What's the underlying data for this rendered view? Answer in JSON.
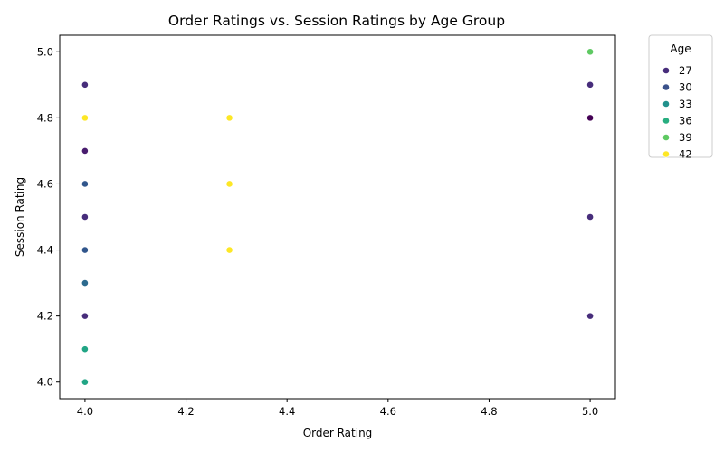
{
  "chart_data": {
    "type": "scatter",
    "title": "Order Ratings vs. Session Ratings by Age Group",
    "xlabel": "Order Rating",
    "ylabel": "Session Rating",
    "xlim": [
      3.95,
      5.05
    ],
    "ylim": [
      3.95,
      5.05
    ],
    "xticks": [
      "4.0",
      "4.2",
      "4.4",
      "4.6",
      "4.8",
      "5.0"
    ],
    "yticks": [
      "4.0",
      "4.2",
      "4.4",
      "4.6",
      "4.8",
      "5.0"
    ],
    "grid": false,
    "legend": {
      "title": "Age",
      "placement": "outside-right",
      "entries": [
        {
          "label": "27",
          "color": "#472d7b"
        },
        {
          "label": "30",
          "color": "#3b528b"
        },
        {
          "label": "33",
          "color": "#21918c"
        },
        {
          "label": "36",
          "color": "#28ae80"
        },
        {
          "label": "39",
          "color": "#5ec962"
        },
        {
          "label": "42",
          "color": "#fde725"
        }
      ]
    },
    "points": [
      {
        "x": 4.0,
        "y": 4.9,
        "age": 27,
        "color": "#472d7b"
      },
      {
        "x": 4.0,
        "y": 4.8,
        "age": 42,
        "color": "#fde725"
      },
      {
        "x": 4.0,
        "y": 4.7,
        "age": 26,
        "color": "#481c6e"
      },
      {
        "x": 4.0,
        "y": 4.6,
        "age": 30,
        "color": "#31568c"
      },
      {
        "x": 4.0,
        "y": 4.5,
        "age": 27,
        "color": "#472d7b"
      },
      {
        "x": 4.0,
        "y": 4.4,
        "age": 30,
        "color": "#31568c"
      },
      {
        "x": 4.0,
        "y": 4.3,
        "age": 31,
        "color": "#2c6a8e"
      },
      {
        "x": 4.0,
        "y": 4.2,
        "age": 27,
        "color": "#472d7b"
      },
      {
        "x": 4.0,
        "y": 4.1,
        "age": 35,
        "color": "#21a585"
      },
      {
        "x": 4.0,
        "y": 4.0,
        "age": 35,
        "color": "#21a585"
      },
      {
        "x": 4.286,
        "y": 4.8,
        "age": 42,
        "color": "#fde725"
      },
      {
        "x": 4.286,
        "y": 4.6,
        "age": 42,
        "color": "#fde725"
      },
      {
        "x": 4.286,
        "y": 4.4,
        "age": 42,
        "color": "#fde725"
      },
      {
        "x": 5.0,
        "y": 5.0,
        "age": 39,
        "color": "#5ec962"
      },
      {
        "x": 5.0,
        "y": 4.9,
        "age": 27,
        "color": "#472d7b"
      },
      {
        "x": 5.0,
        "y": 4.8,
        "age": 24,
        "color": "#440154"
      },
      {
        "x": 5.0,
        "y": 4.5,
        "age": 27,
        "color": "#472d7b"
      },
      {
        "x": 5.0,
        "y": 4.2,
        "age": 27,
        "color": "#472d7b"
      }
    ]
  }
}
